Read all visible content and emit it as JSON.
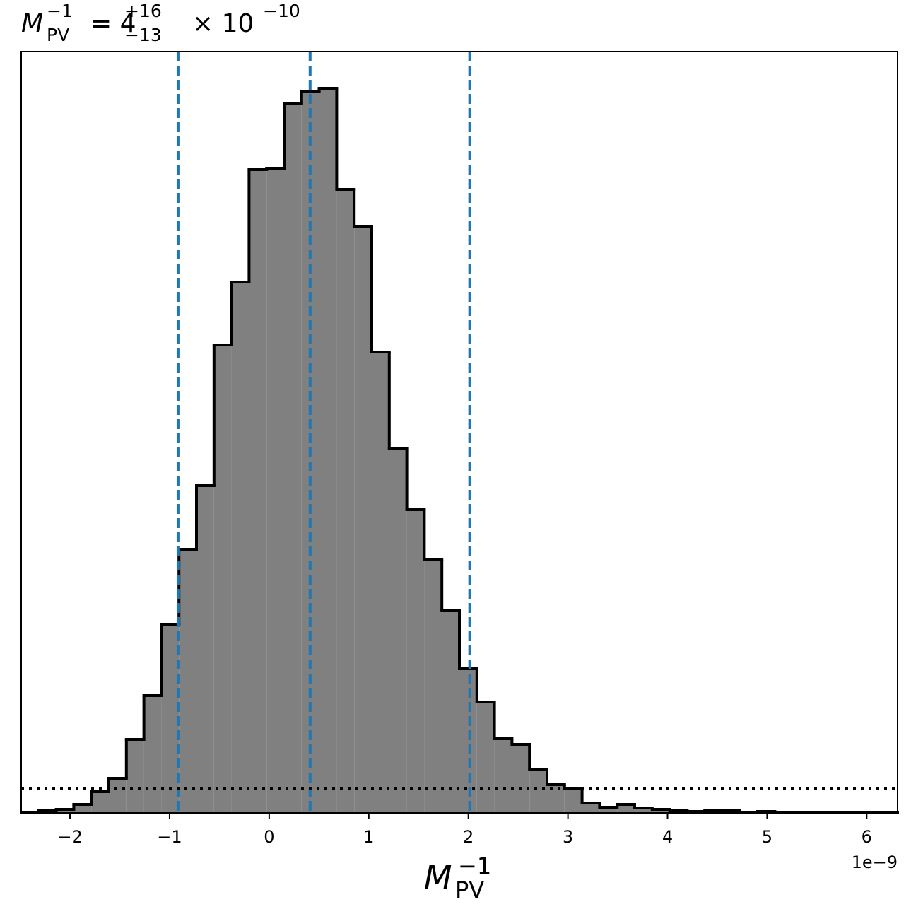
{
  "chart_data": {
    "type": "histogram",
    "title": [
      "M",
      "PV",
      "−1",
      "= 4",
      "+16",
      "−13",
      "× 10",
      "−10"
    ],
    "xlabel": [
      "M",
      "PV",
      "−1"
    ],
    "x_offset_label": "1e−9",
    "bins": [
      -2.49,
      -2.314,
      -2.138,
      -1.962,
      -1.786,
      -1.61,
      -1.434,
      -1.258,
      -1.082,
      -0.906,
      -0.73,
      -0.554,
      -0.378,
      -0.202,
      -0.026,
      0.15,
      0.326,
      0.502,
      0.678,
      0.854,
      1.03,
      1.206,
      1.382,
      1.558,
      1.734,
      1.91,
      2.086,
      2.262,
      2.438,
      2.614,
      2.79,
      2.966,
      3.142,
      3.318,
      3.494,
      3.67,
      3.846,
      4.022,
      4.198,
      4.374,
      4.55,
      4.726,
      4.902,
      5.078,
      5.254,
      5.43,
      5.606,
      5.782,
      5.958,
      6.134,
      6.31
    ],
    "counts": [
      1,
      3,
      5,
      12,
      30,
      49,
      104,
      166,
      266,
      373,
      463,
      662,
      751,
      910,
      912,
      1003,
      1020,
      1025,
      882,
      830,
      652,
      515,
      429,
      358,
      286,
      204,
      157,
      105,
      97,
      62,
      40,
      35,
      14,
      8,
      12,
      7,
      5,
      3,
      2,
      3,
      3,
      1,
      2,
      1,
      1,
      1,
      1,
      1,
      1,
      1
    ],
    "color": "#808080",
    "edge_color": "#000000",
    "vlines": [
      -0.915,
      0.411,
      2.014
    ],
    "vline_color": "#1f77b4",
    "hline": 34,
    "hline_color": "#000000",
    "xlim": [
      -2.49,
      6.31
    ],
    "ylim": [
      0,
      1077
    ],
    "xticks": [
      {
        "value": -2,
        "label": "−2"
      },
      {
        "value": -1,
        "label": "−1"
      },
      0,
      1,
      2,
      3,
      4,
      5,
      6
    ]
  }
}
